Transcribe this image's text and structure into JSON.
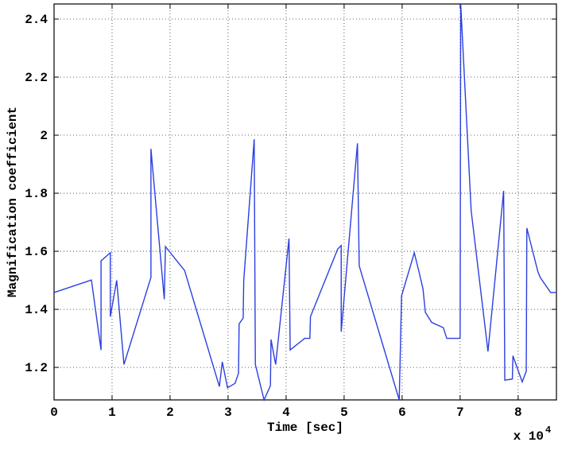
{
  "chart_data": {
    "type": "line",
    "x_label": "Time [sec]",
    "y_label": "Magnification coefficient",
    "x_exponent_base": "x 10",
    "x_exponent": "4",
    "x": [
      0,
      0.644,
      0.81,
      0.81,
      0.97,
      0.97,
      1.08,
      1.205,
      1.67,
      1.67,
      1.9,
      1.92,
      2.25,
      2.85,
      2.9,
      2.99,
      3.12,
      3.18,
      3.19,
      3.26,
      3.27,
      3.45,
      3.47,
      3.62,
      3.73,
      3.74,
      3.82,
      4.05,
      4.07,
      4.32,
      4.41,
      4.42,
      4.89,
      4.95,
      4.95,
      5.23,
      5.26,
      5.95,
      5.99,
      6.21,
      6.29,
      6.36,
      6.4,
      6.51,
      6.71,
      6.77,
      7.0,
      7.01,
      7.19,
      7.48,
      7.75,
      7.77,
      7.9,
      7.91,
      8.07,
      8.14,
      8.15,
      8.34,
      8.38,
      8.56,
      8.66
    ],
    "series": [
      {
        "color": "#2b3fe0",
        "values": [
          1.458,
          1.501,
          1.26,
          1.567,
          1.595,
          1.375,
          1.5,
          1.21,
          1.51,
          1.953,
          1.435,
          1.616,
          1.534,
          1.134,
          1.219,
          1.13,
          1.145,
          1.18,
          1.35,
          1.37,
          1.5,
          1.986,
          1.21,
          1.088,
          1.137,
          1.296,
          1.21,
          1.644,
          1.26,
          1.3,
          1.3,
          1.375,
          1.608,
          1.62,
          1.323,
          1.972,
          1.55,
          1.088,
          1.446,
          1.595,
          1.53,
          1.47,
          1.39,
          1.355,
          1.337,
          1.3,
          1.3,
          2.452,
          1.74,
          1.255,
          1.808,
          1.156,
          1.16,
          1.24,
          1.15,
          1.187,
          1.68,
          1.53,
          1.51,
          1.458,
          1.458
        ]
      }
    ],
    "xlim": [
      0,
      8.66
    ],
    "ylim": [
      1.088,
      2.452
    ],
    "xticks": [
      0,
      1,
      2,
      3,
      4,
      5,
      6,
      7,
      8
    ],
    "yticks": [
      1.2,
      1.4,
      1.6,
      1.8,
      2,
      2.2,
      2.4
    ],
    "grid": true
  }
}
